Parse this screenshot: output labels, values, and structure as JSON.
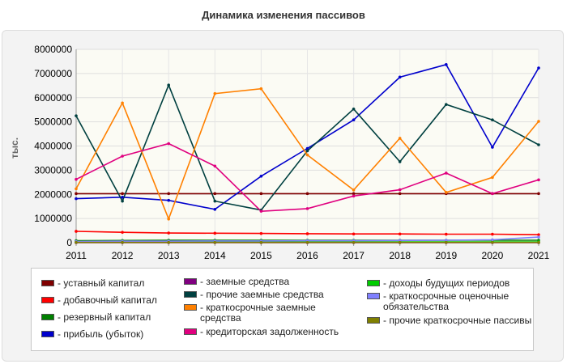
{
  "title": "Динамика изменения пассивов",
  "chart_data": {
    "type": "line",
    "title": "Динамика изменения пассивов",
    "xlabel": "",
    "ylabel": "тыс.",
    "ylim": [
      0,
      8000000
    ],
    "yticks": [
      "0",
      "1000000",
      "2000000",
      "3000000",
      "4000000",
      "5000000",
      "6000000",
      "7000000",
      "8000000"
    ],
    "grid": true,
    "legend_placement": "bottom",
    "x": [
      "2011",
      "2012",
      "2013",
      "2014",
      "2015",
      "2016",
      "2017",
      "2018",
      "2019",
      "2020",
      "2021"
    ],
    "series": [
      {
        "name": "- уставный капитал",
        "color": "#800000",
        "values": [
          2030000,
          2030000,
          2030000,
          2030000,
          2030000,
          2030000,
          2030000,
          2030000,
          2030000,
          2030000,
          2030000
        ]
      },
      {
        "name": "- добавочный капитал",
        "color": "#ff0000",
        "values": [
          470000,
          430000,
          400000,
          390000,
          380000,
          370000,
          360000,
          360000,
          350000,
          350000,
          330000
        ]
      },
      {
        "name": "- резервный капитал",
        "color": "#008000",
        "values": [
          80000,
          90000,
          100000,
          100000,
          100000,
          100000,
          100000,
          100000,
          100000,
          100000,
          100000
        ]
      },
      {
        "name": "- прибыль (убыток)",
        "color": "#0000cc",
        "values": [
          1820000,
          1880000,
          1750000,
          1380000,
          2750000,
          3900000,
          5080000,
          6850000,
          7370000,
          3950000,
          7230000
        ]
      },
      {
        "name": "- заемные средства",
        "color": "#800080",
        "values": [
          0,
          0,
          0,
          0,
          0,
          0,
          0,
          0,
          0,
          0,
          0
        ]
      },
      {
        "name": "- прочие заемные средства",
        "color": "#004040",
        "values": [
          5250000,
          1720000,
          6520000,
          1720000,
          1350000,
          3800000,
          5530000,
          3350000,
          5720000,
          5080000,
          4050000
        ]
      },
      {
        "name": "- краткосрочные заемные средства",
        "color": "#ff8000",
        "values": [
          2230000,
          5780000,
          980000,
          6170000,
          6370000,
          3630000,
          2180000,
          4320000,
          2080000,
          2700000,
          5020000
        ]
      },
      {
        "name": "- кредиторская задолженность",
        "color": "#e0007f",
        "values": [
          2620000,
          3580000,
          4100000,
          3170000,
          1300000,
          1410000,
          1930000,
          2190000,
          2880000,
          2030000,
          2600000
        ]
      },
      {
        "name": "- доходы будущих периодов",
        "color": "#00cc00",
        "values": [
          30000,
          30000,
          30000,
          30000,
          30000,
          30000,
          30000,
          30000,
          30000,
          30000,
          30000
        ]
      },
      {
        "name": "- краткосрочные оценочные обязательства",
        "color": "#8080ff",
        "values": [
          50000,
          60000,
          60000,
          70000,
          70000,
          80000,
          80000,
          90000,
          100000,
          120000,
          230000
        ]
      },
      {
        "name": "- прочие краткосрочные пассивы",
        "color": "#808000",
        "values": [
          10000,
          10000,
          10000,
          10000,
          10000,
          10000,
          10000,
          10000,
          10000,
          10000,
          10000
        ]
      }
    ]
  }
}
